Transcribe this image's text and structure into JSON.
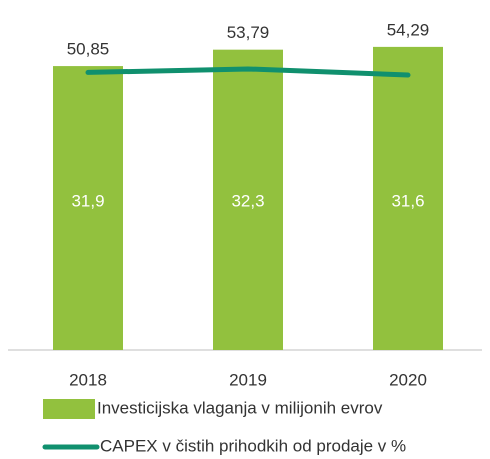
{
  "chart_data": {
    "type": "bar-line",
    "categories": [
      "2018",
      "2019",
      "2020"
    ],
    "ylim": [
      0,
      60
    ],
    "y2lim": [
      0,
      38.5
    ],
    "series": [
      {
        "name": "Investicijska vlaganja v milijonih evrov",
        "type": "bar",
        "color": "#92c13e",
        "values": [
          50.85,
          53.79,
          54.29
        ],
        "value_labels": [
          "50,85",
          "53,79",
          "54,29"
        ]
      },
      {
        "name": "CAPEX v čistih prihodkih od prodaje v %",
        "type": "line",
        "axis": "y2",
        "color": "#10906e",
        "values": [
          31.9,
          32.3,
          31.6
        ],
        "value_labels": [
          "31,9",
          "32,3",
          "31,6"
        ]
      }
    ]
  }
}
